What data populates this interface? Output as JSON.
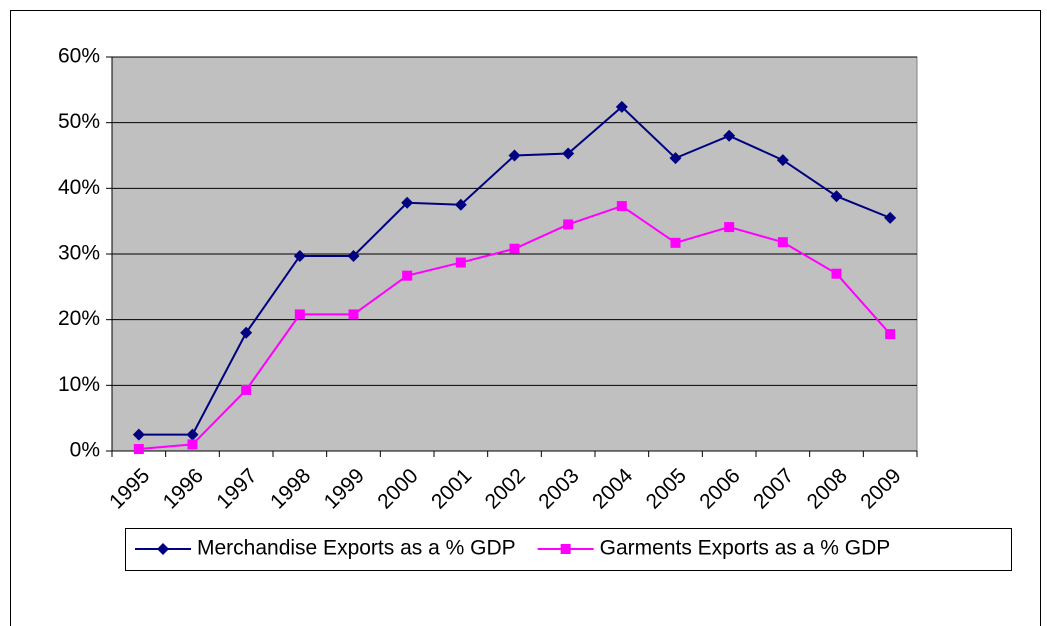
{
  "chart_data": {
    "type": "line",
    "categories": [
      "1995",
      "1996",
      "1997",
      "1998",
      "1999",
      "2000",
      "2001",
      "2002",
      "2003",
      "2004",
      "2005",
      "2006",
      "2007",
      "2008",
      "2009"
    ],
    "series": [
      {
        "name": "Merchandise Exports as a % GDP",
        "color": "#000080",
        "marker": "diamond",
        "values": [
          2.5,
          2.5,
          18,
          29.7,
          29.7,
          37.8,
          37.5,
          45,
          45.3,
          52.4,
          44.6,
          48,
          44.3,
          38.8,
          35.5
        ]
      },
      {
        "name": "Garments Exports as a % GDP",
        "color": "#ff00ff",
        "marker": "square",
        "values": [
          0.3,
          1,
          9.3,
          20.8,
          20.8,
          26.7,
          28.7,
          30.8,
          34.5,
          37.3,
          31.7,
          34.1,
          31.8,
          27,
          17.8
        ]
      }
    ],
    "ylim": [
      0,
      60
    ],
    "yticks": [
      {
        "value": 0,
        "label": "0%"
      },
      {
        "value": 10,
        "label": "10%"
      },
      {
        "value": 20,
        "label": "20%"
      },
      {
        "value": 30,
        "label": "30%"
      },
      {
        "value": 40,
        "label": "40%"
      },
      {
        "value": 50,
        "label": "50%"
      },
      {
        "value": 60,
        "label": "60%"
      }
    ],
    "grid": true,
    "legend": "bottom",
    "plot_background": "#c0c0c0"
  }
}
